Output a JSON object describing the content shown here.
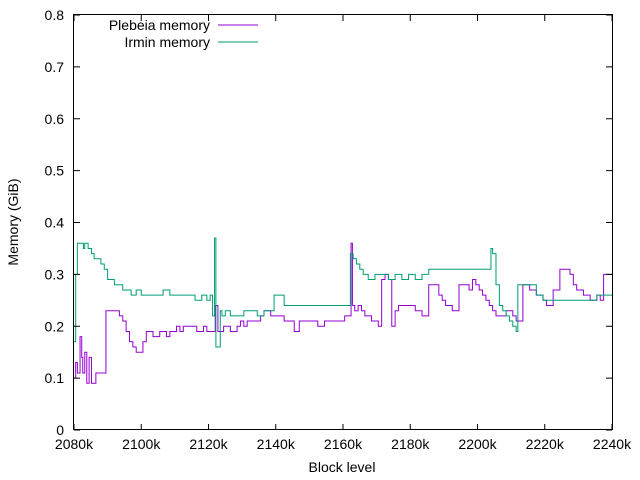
{
  "chart_data": {
    "type": "line",
    "xlabel": "Block level",
    "ylabel": "Memory (GiB)",
    "xlim": [
      2080,
      2240
    ],
    "ylim": [
      0,
      0.8
    ],
    "x_unit": "k",
    "xticks": [
      "2080k",
      "2100k",
      "2120k",
      "2140k",
      "2160k",
      "2180k",
      "2200k",
      "2220k",
      "2240k"
    ],
    "yticks": [
      "0",
      "0.1",
      "0.2",
      "0.3",
      "0.4",
      "0.5",
      "0.6",
      "0.7",
      "0.8"
    ],
    "legend_position": "top-left",
    "series": [
      {
        "name": "Plebeia memory",
        "color": "#9400d3",
        "x": [
          2080,
          2080.5,
          2081,
          2081.8,
          2082.3,
          2082.6,
          2083.2,
          2083.8,
          2084.5,
          2085.2,
          2086.5,
          2088,
          2089.5,
          2090.5,
          2093.5,
          2094.5,
          2095.5,
          2096.5,
          2097.5,
          2098.5,
          2100.5,
          2101.5,
          2102.5,
          2103.5,
          2105.5,
          2107.5,
          2108.5,
          2109.5,
          2110.5,
          2111.5,
          2112.5,
          2115.5,
          2116.5,
          2118.5,
          2119.5,
          2121.5,
          2122,
          2122.8,
          2124.5,
          2126.5,
          2128.5,
          2129.5,
          2130.5,
          2131.5,
          2134.5,
          2135.5,
          2136.5,
          2138.5,
          2140.5,
          2142.5,
          2145.5,
          2147,
          2148.5,
          2150.5,
          2152.5,
          2154.5,
          2156.5,
          2158.5,
          2160.5,
          2162,
          2162.4,
          2162.8,
          2163.5,
          2164.5,
          2165.5,
          2166.5,
          2167.5,
          2168.5,
          2169.5,
          2170.5,
          2171.5,
          2172.5,
          2173.5,
          2174.5,
          2175.5,
          2176.5,
          2178.5,
          2180.5,
          2181.5,
          2183.5,
          2185.5,
          2187.5,
          2188.5,
          2189.5,
          2190.5,
          2192.5,
          2194.5,
          2196.5,
          2197.5,
          2198.5,
          2199.5,
          2200.5,
          2201.5,
          2202.5,
          2203.5,
          2204.5,
          2205.5,
          2206.5,
          2208.5,
          2210.5,
          2211.5,
          2212,
          2213.5,
          2215.5,
          2217.5,
          2219.5,
          2220.5,
          2222.5,
          2224.5,
          2226.5,
          2227.5,
          2228.5,
          2229.5,
          2231.5,
          2233.5,
          2235.5,
          2236.5,
          2237.5,
          2240
        ],
        "y": [
          0.1,
          0.13,
          0.11,
          0.18,
          0.14,
          0.11,
          0.15,
          0.09,
          0.14,
          0.09,
          0.11,
          0.11,
          0.23,
          0.23,
          0.22,
          0.21,
          0.19,
          0.17,
          0.16,
          0.15,
          0.17,
          0.19,
          0.19,
          0.18,
          0.19,
          0.18,
          0.19,
          0.19,
          0.2,
          0.19,
          0.2,
          0.2,
          0.19,
          0.2,
          0.19,
          0.19,
          0.24,
          0.19,
          0.2,
          0.19,
          0.2,
          0.21,
          0.2,
          0.21,
          0.21,
          0.22,
          0.23,
          0.22,
          0.22,
          0.21,
          0.19,
          0.21,
          0.21,
          0.21,
          0.2,
          0.21,
          0.21,
          0.21,
          0.22,
          0.22,
          0.36,
          0.24,
          0.23,
          0.24,
          0.23,
          0.22,
          0.22,
          0.21,
          0.21,
          0.2,
          0.29,
          0.3,
          0.29,
          0.2,
          0.23,
          0.24,
          0.24,
          0.24,
          0.23,
          0.22,
          0.28,
          0.28,
          0.26,
          0.25,
          0.24,
          0.23,
          0.28,
          0.28,
          0.27,
          0.29,
          0.28,
          0.27,
          0.26,
          0.25,
          0.24,
          0.23,
          0.22,
          0.22,
          0.23,
          0.22,
          0.21,
          0.21,
          0.28,
          0.27,
          0.26,
          0.25,
          0.24,
          0.27,
          0.31,
          0.31,
          0.3,
          0.28,
          0.27,
          0.26,
          0.25,
          0.26,
          0.25,
          0.3,
          0.3
        ]
      },
      {
        "name": "Irmin memory",
        "color": "#009e73",
        "x": [
          2080,
          2080.5,
          2081,
          2082.8,
          2083.2,
          2084.2,
          2085.2,
          2086,
          2087,
          2088,
          2089,
          2090,
          2092,
          2093.5,
          2094.5,
          2096,
          2096.5,
          2097,
          2098.5,
          2100,
          2102.5,
          2104.5,
          2106.5,
          2108.5,
          2110.5,
          2112,
          2114,
          2116,
          2118,
          2119.5,
          2120.5,
          2121.2,
          2121.8,
          2122.2,
          2123.5,
          2124,
          2125,
          2126.5,
          2128.5,
          2130.5,
          2132.5,
          2134.5,
          2136.5,
          2138.5,
          2139.5,
          2140.5,
          2142.5,
          2144.5,
          2146.5,
          2148.5,
          2150.5,
          2152.5,
          2154.5,
          2156.5,
          2158.5,
          2160.5,
          2162,
          2162.2,
          2163,
          2164,
          2165,
          2166,
          2167.5,
          2169.5,
          2171.5,
          2173.5,
          2174.5,
          2175.5,
          2177.5,
          2179.5,
          2181.5,
          2183.5,
          2185.5,
          2187.5,
          2189.5,
          2191.5,
          2193.5,
          2195.5,
          2197.5,
          2199.5,
          2201.5,
          2203.5,
          2204,
          2204.5,
          2205.5,
          2206.5,
          2207.5,
          2208.5,
          2209.5,
          2210.5,
          2211.5,
          2212,
          2213.5,
          2215.5,
          2217.5,
          2219.5,
          2221.5,
          2223.5,
          2226.5,
          2229.5,
          2232.5,
          2235.5,
          2240
        ],
        "y": [
          0.17,
          0.3,
          0.36,
          0.35,
          0.36,
          0.35,
          0.34,
          0.33,
          0.33,
          0.32,
          0.31,
          0.29,
          0.28,
          0.28,
          0.27,
          0.27,
          0.27,
          0.26,
          0.27,
          0.26,
          0.26,
          0.26,
          0.27,
          0.26,
          0.26,
          0.26,
          0.26,
          0.25,
          0.26,
          0.25,
          0.26,
          0.22,
          0.37,
          0.16,
          0.23,
          0.22,
          0.23,
          0.22,
          0.22,
          0.23,
          0.23,
          0.22,
          0.23,
          0.23,
          0.26,
          0.26,
          0.24,
          0.24,
          0.24,
          0.24,
          0.24,
          0.24,
          0.24,
          0.24,
          0.24,
          0.24,
          0.24,
          0.34,
          0.33,
          0.32,
          0.31,
          0.3,
          0.29,
          0.3,
          0.3,
          0.29,
          0.29,
          0.3,
          0.29,
          0.3,
          0.29,
          0.3,
          0.31,
          0.31,
          0.31,
          0.31,
          0.31,
          0.31,
          0.31,
          0.31,
          0.31,
          0.31,
          0.35,
          0.34,
          0.28,
          0.24,
          0.23,
          0.22,
          0.21,
          0.2,
          0.19,
          0.28,
          0.28,
          0.28,
          0.26,
          0.25,
          0.25,
          0.25,
          0.25,
          0.25,
          0.25,
          0.26,
          0.26
        ]
      }
    ]
  }
}
